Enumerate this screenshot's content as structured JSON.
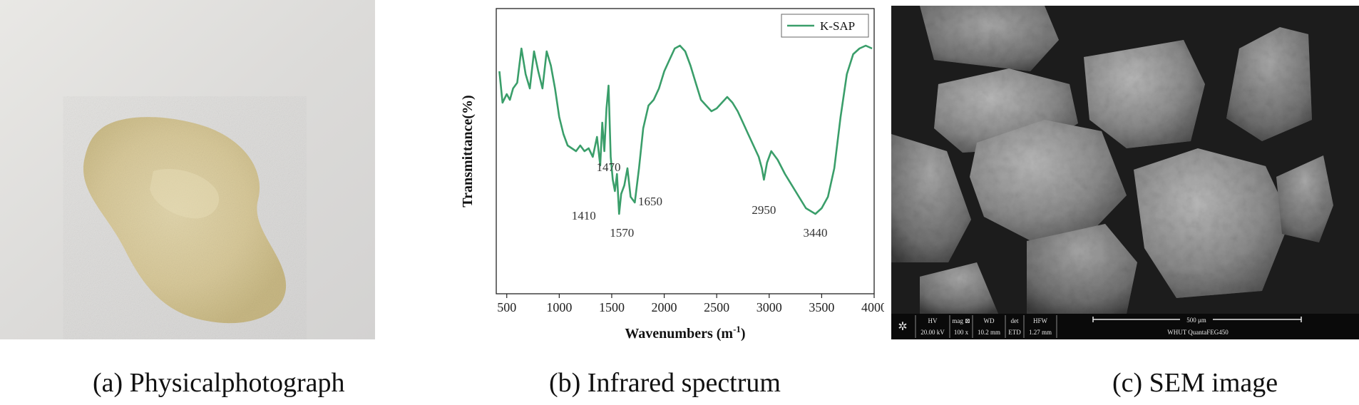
{
  "captions": {
    "a": "(a) Physicalphotograph",
    "b": "(b) Infrared spectrum",
    "c": "(c) SEM image"
  },
  "chart_data": {
    "type": "line",
    "title": "",
    "xlabel": "Wavenumbers (m",
    "xlabel_sup": "-1",
    "xlabel_close": ")",
    "ylabel": "Transmittance(%)",
    "xlim": [
      400,
      4000
    ],
    "ylim": [
      0,
      100
    ],
    "xticks": [
      500,
      1000,
      1500,
      2000,
      2500,
      3000,
      3500,
      4000
    ],
    "legend": "top-right",
    "grid": false,
    "series": [
      {
        "name": "K-SAP",
        "color": "#3a9e6a",
        "x": [
          430,
          460,
          500,
          530,
          560,
          600,
          640,
          680,
          720,
          760,
          800,
          840,
          880,
          920,
          960,
          1000,
          1040,
          1080,
          1120,
          1160,
          1200,
          1240,
          1280,
          1320,
          1360,
          1390,
          1410,
          1430,
          1450,
          1470,
          1490,
          1510,
          1530,
          1550,
          1570,
          1590,
          1620,
          1650,
          1680,
          1720,
          1760,
          1800,
          1850,
          1900,
          1950,
          2000,
          2050,
          2100,
          2150,
          2200,
          2250,
          2300,
          2350,
          2400,
          2450,
          2500,
          2550,
          2600,
          2650,
          2700,
          2750,
          2800,
          2850,
          2900,
          2930,
          2950,
          2980,
          3020,
          3080,
          3150,
          3250,
          3350,
          3440,
          3500,
          3560,
          3620,
          3680,
          3740,
          3800,
          3860,
          3920,
          3980
        ],
        "y": [
          78,
          67,
          70,
          68,
          72,
          74,
          86,
          77,
          72,
          85,
          78,
          72,
          85,
          80,
          72,
          62,
          56,
          52,
          51,
          50,
          52,
          50,
          51,
          48,
          55,
          45,
          60,
          50,
          65,
          73,
          48,
          40,
          36,
          42,
          28,
          35,
          38,
          44,
          34,
          32,
          44,
          58,
          66,
          68,
          72,
          78,
          82,
          86,
          87,
          85,
          80,
          74,
          68,
          66,
          64,
          65,
          67,
          69,
          67,
          64,
          60,
          56,
          52,
          48,
          44,
          40,
          46,
          50,
          47,
          42,
          36,
          30,
          28,
          30,
          34,
          44,
          62,
          77,
          84,
          86,
          87,
          86
        ]
      }
    ],
    "annotations": [
      {
        "label": "1470",
        "x": 1470
      },
      {
        "label": "1410",
        "x": 1410
      },
      {
        "label": "1570",
        "x": 1570
      },
      {
        "label": "1650",
        "x": 1650
      },
      {
        "label": "2950",
        "x": 2950
      },
      {
        "label": "3440",
        "x": 3440
      }
    ]
  },
  "sem_info": {
    "hv_label": "HV",
    "hv_value": "20.00 kV",
    "mag_label": "mag ⊠",
    "mag_value": "100 x",
    "wd_label": "WD",
    "wd_value": "10.2 mm",
    "det_label": "det",
    "det_value": "ETD",
    "hfw_label": "HFW",
    "hfw_value": "1.27 mm",
    "scale_label": "500 μm",
    "instrument": "WHUT QuantaFEG450"
  }
}
